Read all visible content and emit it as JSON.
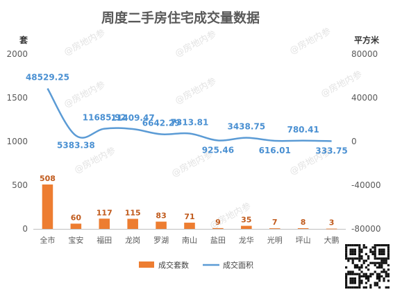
{
  "colors": {
    "bar": "#ed7d31",
    "line": "#5b9bd5",
    "bar_label": "#c05a1c",
    "line_label": "#4a90d2",
    "axis": "#bfbfbf"
  },
  "watermark": "@房地内参",
  "chart_data": {
    "type": "bar",
    "title": "周度二手房住宅成交量数据",
    "categories": [
      "全市",
      "宝安",
      "福田",
      "龙岗",
      "罗湖",
      "南山",
      "盐田",
      "龙华",
      "光明",
      "坪山",
      "大鹏"
    ],
    "left_axis": {
      "unit": "套",
      "ylim": [
        0,
        2000
      ],
      "ticks": [
        0,
        500,
        1000,
        1500,
        2000
      ],
      "tick_labels": [
        "0",
        "500",
        "1000",
        "1500",
        "2000"
      ]
    },
    "right_axis": {
      "unit": "平方米",
      "ylim": [
        -80000,
        80000
      ],
      "ticks": [
        -80000,
        -40000,
        0,
        40000,
        80000
      ],
      "tick_labels": [
        "-80000",
        "-40000",
        "0",
        "40000",
        "80000"
      ]
    },
    "series": [
      {
        "name": "成交套数",
        "type": "bar",
        "axis": "left",
        "values": [
          508,
          60,
          117,
          115,
          83,
          71,
          9,
          35,
          7,
          8,
          3
        ],
        "labels": [
          "508",
          "60",
          "117",
          "115",
          "83",
          "71",
          "9",
          "35",
          "7",
          "8",
          "3"
        ]
      },
      {
        "name": "成交面积",
        "type": "line",
        "axis": "right",
        "values": [
          48529.25,
          5383.38,
          11685.92,
          11409.47,
          6642.29,
          7313.81,
          925.46,
          3438.75,
          616.01,
          780.41,
          333.75
        ],
        "labels": [
          "48529.25",
          "5383.38",
          "11685.92",
          "11409.47",
          "6642.29",
          "7313.81",
          "925.46",
          "3438.75",
          "616.01",
          "780.41",
          "333.75"
        ]
      }
    ],
    "legend": {
      "position": "bottom",
      "items": [
        "成交套数",
        "成交面积"
      ]
    },
    "grid": false
  }
}
